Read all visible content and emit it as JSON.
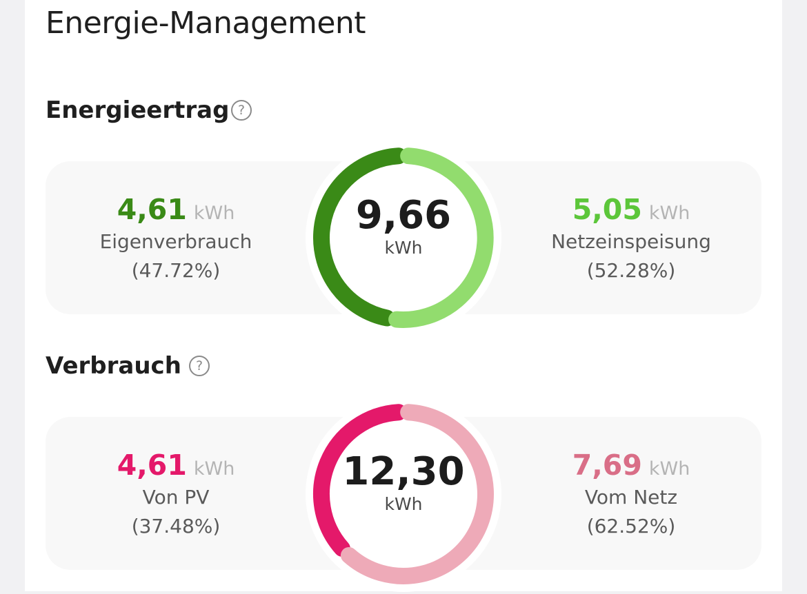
{
  "page_title": "Energie-Management",
  "sections": [
    {
      "title": "Energieertrag",
      "help_icon": "question-circle-icon",
      "total": "9,66",
      "total_unit": "kWh",
      "left": {
        "value": "4,61",
        "unit": "kWh",
        "label": "Eigenverbrauch",
        "percent": "(47.72%)",
        "fraction": 0.4772,
        "color": "#3a8a17"
      },
      "right": {
        "value": "5,05",
        "unit": "kWh",
        "label": "Netzeinspeisung",
        "percent": "(52.28%)",
        "fraction": 0.5228,
        "color": "#5cc63a",
        "arc_color": "#92dc6e"
      }
    },
    {
      "title": "Verbrauch",
      "help_icon": "question-circle-icon",
      "total": "12,30",
      "total_unit": "kWh",
      "left": {
        "value": "4,61",
        "unit": "kWh",
        "label": "Von PV",
        "percent": "(37.48%)",
        "fraction": 0.3748,
        "color": "#e4196a"
      },
      "right": {
        "value": "7,69",
        "unit": "kWh",
        "label": "Vom Netz",
        "percent": "(62.52%)",
        "fraction": 0.6252,
        "color": "#d96e87",
        "arc_color": "#eeaab8"
      }
    }
  ]
}
